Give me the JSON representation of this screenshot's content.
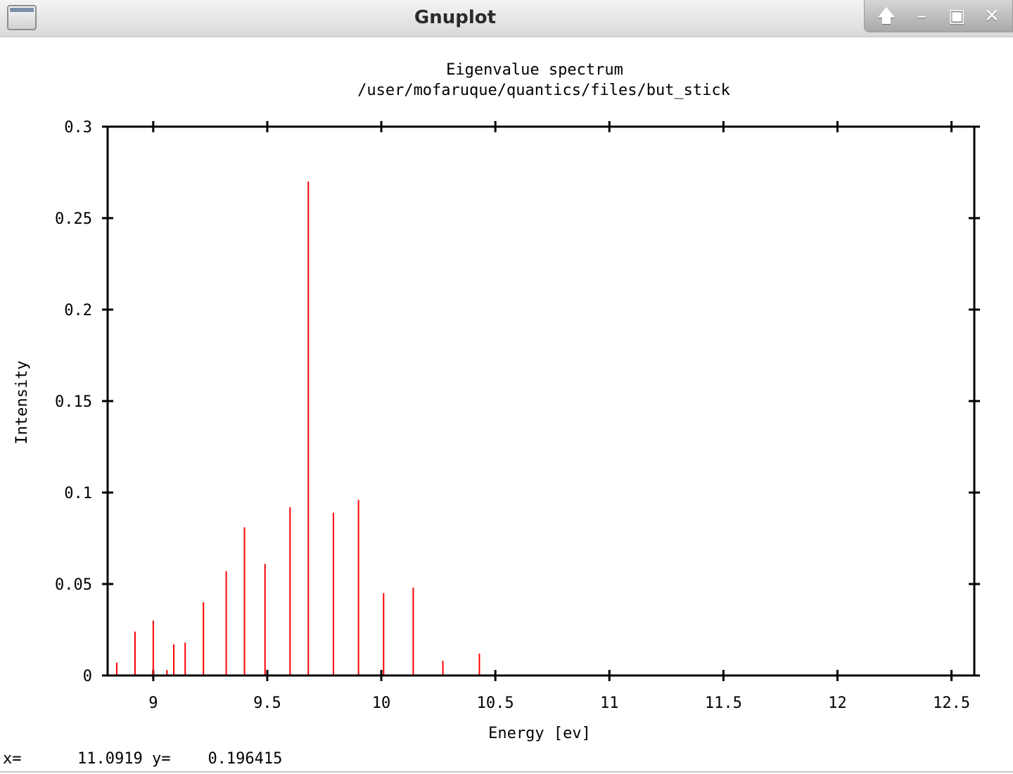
{
  "window": {
    "title": "Gnuplot",
    "icon": "window-menu-icon",
    "controls": [
      {
        "name": "shade-button",
        "glyph": "🡅"
      },
      {
        "name": "minimize-button",
        "glyph": "–"
      },
      {
        "name": "maximize-button",
        "glyph": "▣"
      },
      {
        "name": "close-button",
        "glyph": "✕"
      }
    ]
  },
  "status_bar": {
    "x_label": "x=",
    "x_value": "11.0919",
    "y_label": "y=",
    "y_value": "0.196415"
  },
  "chart_data": {
    "type": "bar",
    "style": "impulses",
    "title": "Eigenvalue spectrum",
    "subtitle": "/user/mofaruque/quantics/files/but_stick",
    "xlabel": "Energy [ev]",
    "ylabel": "Intensity",
    "xlim": [
      8.8,
      12.6
    ],
    "ylim": [
      0,
      0.3
    ],
    "xticks": [
      9,
      9.5,
      10,
      10.5,
      11,
      11.5,
      12,
      12.5
    ],
    "xtick_labels": [
      "9",
      "9.5",
      "10",
      "10.5",
      "11",
      "11.5",
      "12",
      "12.5"
    ],
    "yticks": [
      0,
      0.05,
      0.1,
      0.15,
      0.2,
      0.25,
      0.3
    ],
    "ytick_labels": [
      "0",
      "0.05",
      "0.1",
      "0.15",
      "0.2",
      "0.25",
      "0.3"
    ],
    "grid": false,
    "legend": "none",
    "colors": {
      "impulse": "#ff0000",
      "frame": "#000000"
    },
    "series": [
      {
        "x": [
          8.84,
          8.92,
          9.0,
          9.06,
          9.09,
          9.14,
          9.22,
          9.32,
          9.4,
          9.49,
          9.6,
          9.68,
          9.79,
          9.9,
          10.01,
          10.14,
          10.27,
          10.43
        ],
        "values": [
          0.007,
          0.024,
          0.03,
          0.003,
          0.017,
          0.018,
          0.04,
          0.057,
          0.081,
          0.061,
          0.092,
          0.27,
          0.089,
          0.096,
          0.045,
          0.048,
          0.008,
          0.012
        ]
      }
    ]
  }
}
